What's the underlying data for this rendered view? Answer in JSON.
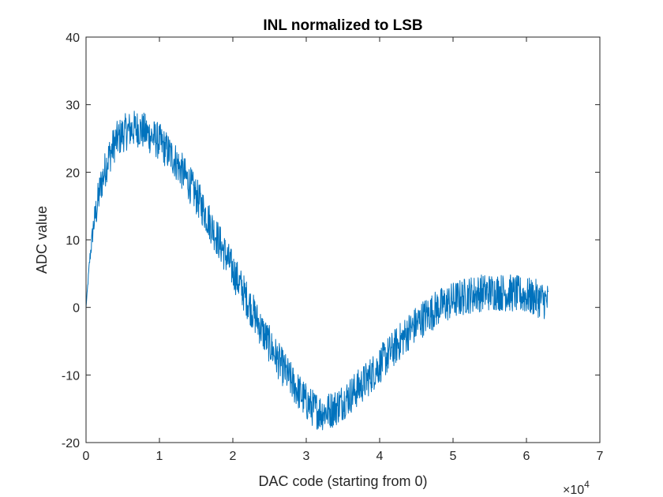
{
  "chart_data": {
    "type": "line",
    "title": "INL normalized to LSB",
    "xlabel": "DAC code (starting from 0)",
    "ylabel": "ADC value",
    "x_exponent_label": "×10",
    "x_exponent_power": "4",
    "xlim": [
      0,
      70000
    ],
    "ylim": [
      -20,
      40
    ],
    "x_ticks": [
      0,
      10000,
      20000,
      30000,
      40000,
      50000,
      60000,
      70000
    ],
    "x_tick_labels": [
      "0",
      "1",
      "2",
      "3",
      "4",
      "5",
      "6",
      "7"
    ],
    "y_ticks": [
      -20,
      -10,
      0,
      10,
      20,
      30,
      40
    ],
    "y_tick_labels": [
      "-20",
      "-10",
      "0",
      "10",
      "20",
      "30",
      "40"
    ],
    "grid": false,
    "series_color": "#0072BD",
    "series": [
      {
        "x": [
          0,
          500,
          1000,
          2000,
          3000,
          4000,
          5000,
          6000,
          7000,
          8000,
          10000,
          12000,
          14000,
          16000,
          18000,
          20000,
          22000,
          24000,
          26000,
          28000,
          30000,
          31000,
          32000,
          33000,
          34000,
          36000,
          38000,
          40000,
          42000,
          44000,
          46000,
          48000,
          50000,
          52000,
          54000,
          56000,
          58000,
          60000,
          62000,
          63000
        ],
        "y": [
          0,
          7,
          12,
          18,
          22,
          24.5,
          25.7,
          26.3,
          26.5,
          26,
          24.5,
          22,
          18.5,
          14.5,
          10,
          5.5,
          1,
          -3.5,
          -7.5,
          -11,
          -14,
          -15,
          -15.5,
          -15.3,
          -14.8,
          -13,
          -11,
          -8.5,
          -6,
          -3.5,
          -1.5,
          0,
          1,
          1.8,
          2.2,
          2.3,
          2.1,
          1.7,
          1.2,
          0.8
        ],
        "noise_band": 2.8
      }
    ]
  }
}
